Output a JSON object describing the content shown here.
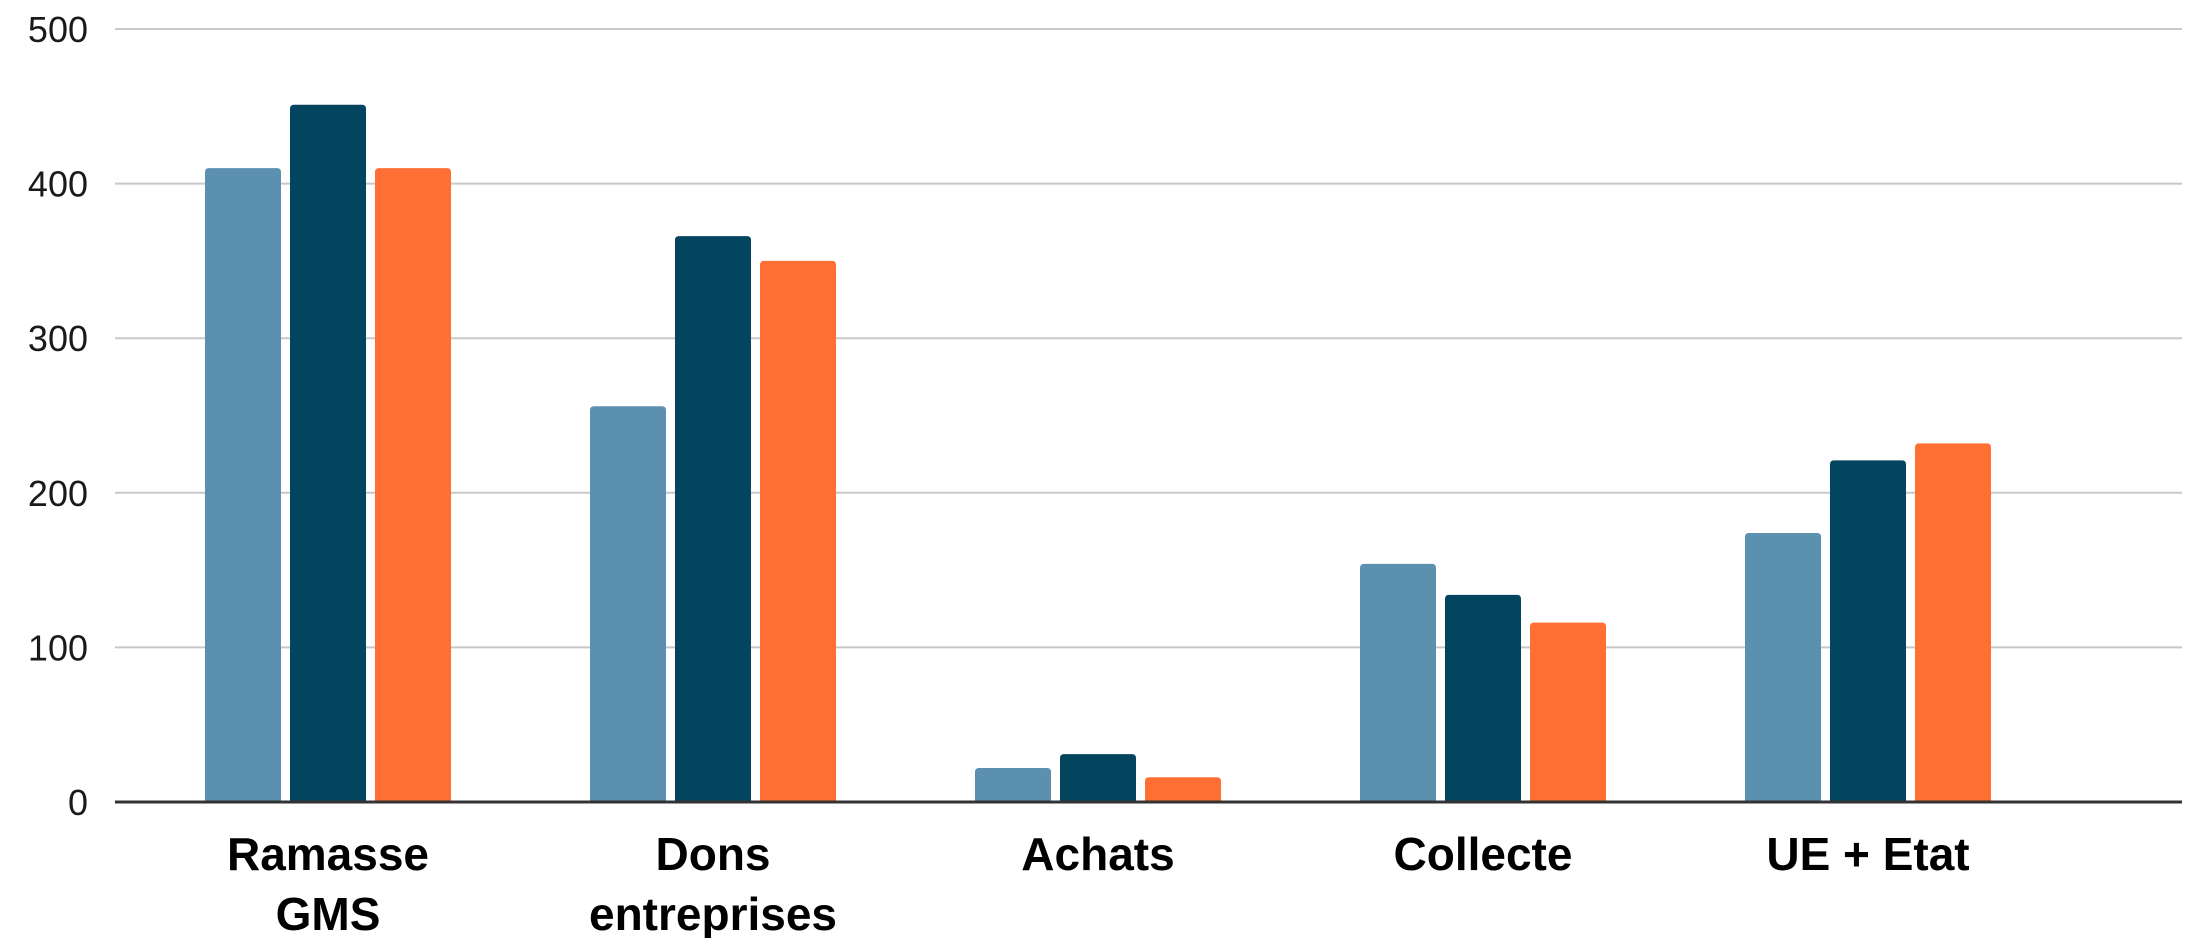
{
  "chart_data": {
    "type": "bar",
    "title": "",
    "xlabel": "",
    "ylabel": "",
    "categories": [
      [
        "Ramasse",
        "GMS"
      ],
      [
        "Dons",
        "entreprises"
      ],
      [
        "Achats"
      ],
      [
        "Collecte"
      ],
      [
        "UE + Etat"
      ]
    ],
    "series": [
      {
        "color": "#5b90ae",
        "values": [
          410,
          256,
          22,
          154,
          174
        ]
      },
      {
        "color": "#03445f",
        "values": [
          451,
          366,
          31,
          134,
          221
        ]
      },
      {
        "color": "#ff6f33",
        "values": [
          410,
          350,
          16,
          116,
          232
        ]
      }
    ],
    "ylim": [
      0,
      500
    ],
    "yticks": [
      0,
      100,
      200,
      300,
      400,
      500
    ],
    "grid": true,
    "legend": "none",
    "colors": {
      "grid": "#c8c8c8",
      "baseline": "#333333"
    }
  }
}
